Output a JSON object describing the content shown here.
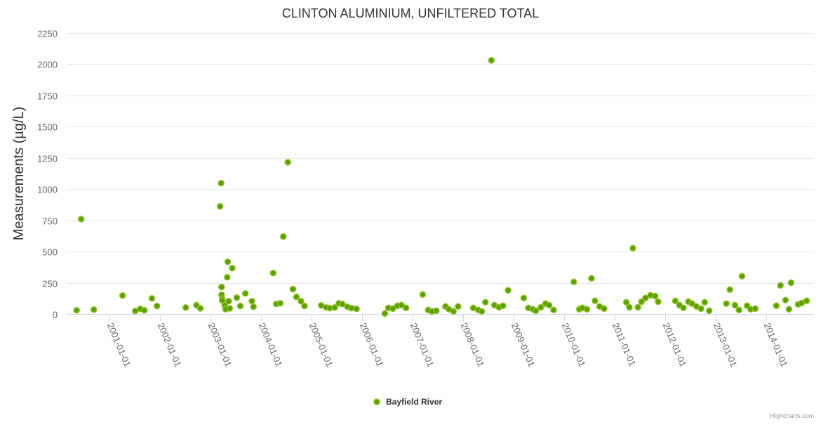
{
  "chart_data": {
    "type": "scatter",
    "title": "CLINTON ALUMINIUM, UNFILTERED TOTAL",
    "xlabel": "",
    "ylabel": "Measurements (µg/L)",
    "ylim": [
      0,
      2250
    ],
    "yticks": [
      0,
      250,
      500,
      750,
      1000,
      1250,
      1500,
      1750,
      2000,
      2250
    ],
    "xticks": [
      "2001-01-01",
      "2002-01-01",
      "2003-01-01",
      "2004-01-01",
      "2005-01-01",
      "2006-01-01",
      "2007-01-01",
      "2008-01-01",
      "2009-01-01",
      "2010-01-01",
      "2011-01-01",
      "2012-01-01",
      "2013-01-01",
      "2014-01-01"
    ],
    "xlim_years": [
      2000.3,
      2015.0
    ],
    "grid": true,
    "legend_position": "bottom-center",
    "colors": {
      "marker": "#5c9e00",
      "marker_stroke": "#8fc31f",
      "grid": "#e6e6e6",
      "axis": "#ccd6eb"
    },
    "series": [
      {
        "name": "Bayfield River",
        "points": [
          [
            2000.35,
            30
          ],
          [
            2000.44,
            760
          ],
          [
            2000.69,
            35
          ],
          [
            2001.26,
            148
          ],
          [
            2001.51,
            25
          ],
          [
            2001.61,
            41
          ],
          [
            2001.69,
            30
          ],
          [
            2001.84,
            125
          ],
          [
            2001.94,
            64
          ],
          [
            2002.51,
            52
          ],
          [
            2002.72,
            71
          ],
          [
            2002.8,
            45
          ],
          [
            2003.19,
            862
          ],
          [
            2003.21,
            1048
          ],
          [
            2003.22,
            216
          ],
          [
            2003.22,
            154
          ],
          [
            2003.23,
            124
          ],
          [
            2003.23,
            109
          ],
          [
            2003.28,
            71
          ],
          [
            2003.3,
            39
          ],
          [
            2003.33,
            294
          ],
          [
            2003.34,
            418
          ],
          [
            2003.36,
            103
          ],
          [
            2003.38,
            45
          ],
          [
            2003.43,
            367
          ],
          [
            2003.52,
            131
          ],
          [
            2003.59,
            64
          ],
          [
            2003.69,
            165
          ],
          [
            2003.82,
            103
          ],
          [
            2003.85,
            58
          ],
          [
            2004.24,
            328
          ],
          [
            2004.3,
            80
          ],
          [
            2004.38,
            86
          ],
          [
            2004.44,
            620
          ],
          [
            2004.53,
            1215
          ],
          [
            2004.63,
            199
          ],
          [
            2004.7,
            137
          ],
          [
            2004.79,
            103
          ],
          [
            2004.86,
            64
          ],
          [
            2005.19,
            69
          ],
          [
            2005.29,
            52
          ],
          [
            2005.36,
            47
          ],
          [
            2005.46,
            52
          ],
          [
            2005.54,
            86
          ],
          [
            2005.61,
            80
          ],
          [
            2005.71,
            58
          ],
          [
            2005.79,
            47
          ],
          [
            2005.89,
            41
          ],
          [
            2006.45,
            4
          ],
          [
            2006.52,
            49
          ],
          [
            2006.61,
            43
          ],
          [
            2006.7,
            66
          ],
          [
            2006.78,
            71
          ],
          [
            2006.87,
            49
          ],
          [
            2007.2,
            156
          ],
          [
            2007.31,
            32
          ],
          [
            2007.38,
            21
          ],
          [
            2007.47,
            26
          ],
          [
            2007.65,
            60
          ],
          [
            2007.72,
            38
          ],
          [
            2007.81,
            21
          ],
          [
            2007.9,
            60
          ],
          [
            2008.2,
            49
          ],
          [
            2008.3,
            32
          ],
          [
            2008.37,
            21
          ],
          [
            2008.44,
            94
          ],
          [
            2008.56,
            2031
          ],
          [
            2008.62,
            71
          ],
          [
            2008.71,
            54
          ],
          [
            2008.79,
            66
          ],
          [
            2008.89,
            189
          ],
          [
            2009.2,
            128
          ],
          [
            2009.29,
            49
          ],
          [
            2009.38,
            38
          ],
          [
            2009.44,
            26
          ],
          [
            2009.54,
            54
          ],
          [
            2009.63,
            83
          ],
          [
            2009.7,
            71
          ],
          [
            2009.79,
            32
          ],
          [
            2010.19,
            257
          ],
          [
            2010.3,
            38
          ],
          [
            2010.36,
            49
          ],
          [
            2010.45,
            38
          ],
          [
            2010.54,
            285
          ],
          [
            2010.61,
            105
          ],
          [
            2010.7,
            60
          ],
          [
            2010.79,
            43
          ],
          [
            2011.23,
            94
          ],
          [
            2011.29,
            54
          ],
          [
            2011.36,
            527
          ],
          [
            2011.46,
            54
          ],
          [
            2011.53,
            99
          ],
          [
            2011.61,
            128
          ],
          [
            2011.71,
            150
          ],
          [
            2011.8,
            144
          ],
          [
            2011.86,
            99
          ],
          [
            2012.2,
            105
          ],
          [
            2012.28,
            71
          ],
          [
            2012.36,
            49
          ],
          [
            2012.46,
            99
          ],
          [
            2012.53,
            83
          ],
          [
            2012.62,
            60
          ],
          [
            2012.71,
            43
          ],
          [
            2012.78,
            94
          ],
          [
            2012.87,
            26
          ],
          [
            2013.21,
            83
          ],
          [
            2013.28,
            195
          ],
          [
            2013.38,
            71
          ],
          [
            2013.46,
            32
          ],
          [
            2013.52,
            302
          ],
          [
            2013.62,
            66
          ],
          [
            2013.69,
            38
          ],
          [
            2013.78,
            43
          ],
          [
            2014.2,
            66
          ],
          [
            2014.28,
            229
          ],
          [
            2014.38,
            111
          ],
          [
            2014.45,
            38
          ],
          [
            2014.49,
            251
          ],
          [
            2014.63,
            77
          ],
          [
            2014.7,
            88
          ],
          [
            2014.8,
            105
          ]
        ]
      }
    ],
    "credits": "Highcharts.com"
  }
}
